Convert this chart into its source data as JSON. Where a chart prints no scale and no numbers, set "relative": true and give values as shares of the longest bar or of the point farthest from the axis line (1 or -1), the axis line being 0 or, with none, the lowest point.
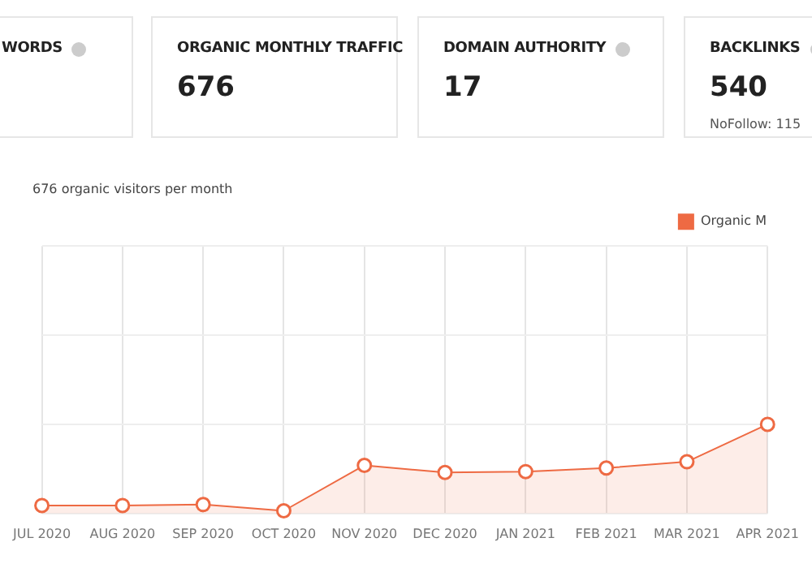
{
  "chart_data": [
    {
      "type": "other",
      "title": "WORDS"
    },
    {
      "type": "other",
      "title": "ORGANIC MONTHLY TRAFFIC",
      "annotations": [
        "676"
      ]
    },
    {
      "type": "other",
      "title": "DOMAIN AUTHORITY",
      "annotations": [
        "17"
      ]
    },
    {
      "type": "other",
      "title": "BACKLINKS",
      "annotations": [
        "540",
        "NoFollow: 115"
      ]
    },
    {
      "type": "area",
      "title": "676 organic visitors per month",
      "relative": true,
      "grid": true,
      "legend": "top right",
      "marker": "circle",
      "categories": [
        "JUL 2020",
        "AUG 2020",
        "SEP 2020",
        "OCT 2020",
        "NOV 2020",
        "DEC 2020",
        "JAN 2021",
        "FEB 2021",
        "MAR 2021",
        "APR 2021"
      ],
      "series": [
        {
          "name": "Organic M",
          "color": "#ee6a43",
          "values": [
            0.09,
            0.09,
            0.1,
            0.03,
            0.54,
            0.46,
            0.47,
            0.51,
            0.58,
            1
          ]
        }
      ]
    }
  ]
}
